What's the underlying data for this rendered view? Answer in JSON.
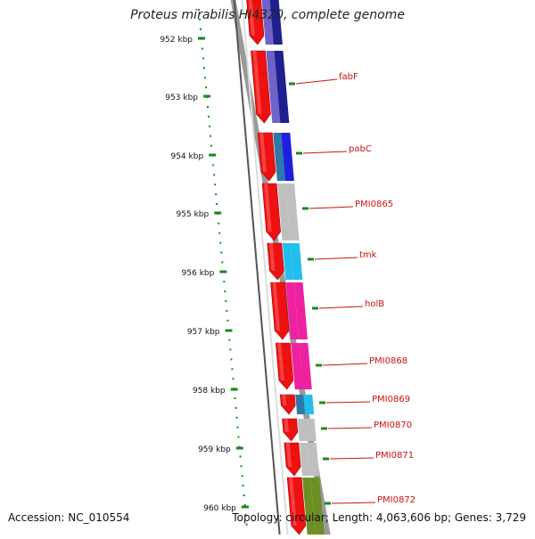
{
  "title": "Proteus mirabilis HI4320, complete genome",
  "footer": {
    "accession": "Accession: NC_010554",
    "summary": "Topology: circular; Length: 4,063,606 bp; Genes: 3,729"
  },
  "ruler": {
    "tick_labels": [
      "952 kbp",
      "953 kbp",
      "954 kbp",
      "955 kbp",
      "956 kbp",
      "957 kbp",
      "958 kbp",
      "959 kbp",
      "960 kbp"
    ],
    "tick_color": "#1a8a1a"
  },
  "backbone_color": "#999999",
  "genes": [
    {
      "name": "",
      "strand_color": "#1f1f8f",
      "cog_color": "#6f62c8"
    },
    {
      "name": "fabF",
      "strand_color": "#1f1f8f",
      "cog_color": "#6f62c8"
    },
    {
      "name": "pabC",
      "strand_color": "#1f1fe0",
      "cog_color": "#2f78a8"
    },
    {
      "name": "PMI0865",
      "strand_color": "#bfbfbf",
      "cog_color": "#bfbfbf"
    },
    {
      "name": "tmk",
      "strand_color": "#21bfee",
      "cog_color": "#21bfee"
    },
    {
      "name": "holB",
      "strand_color": "#ee21a0",
      "cog_color": "#ee21a0"
    },
    {
      "name": "PMI0868",
      "strand_color": "#ee21a0",
      "cog_color": "#ee21a0"
    },
    {
      "name": "PMI0869",
      "strand_color": "#21bfee",
      "cog_color": "#2f78a8"
    },
    {
      "name": "PMI0870",
      "strand_color": "#bfbfbf",
      "cog_color": "#bfbfbf"
    },
    {
      "name": "PMI0871",
      "strand_color": "#bfbfbf",
      "cog_color": "#bfbfbf"
    },
    {
      "name": "PMI0872",
      "strand_color": "#6b8f23",
      "cog_color": "#6b8f23"
    }
  ],
  "gene_arrow_color": "#ee1111",
  "label_color": "#cc1111"
}
